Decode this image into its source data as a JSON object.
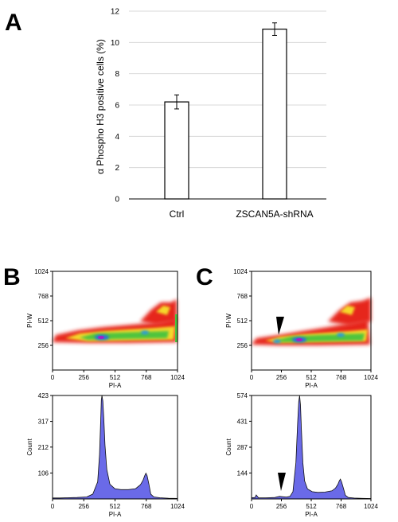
{
  "panels": {
    "a": "A",
    "b": "B",
    "c": "C"
  },
  "chart_data": [
    {
      "panel": "A",
      "type": "bar",
      "categories": [
        "Ctrl",
        "ZSCAN5A-shRNA"
      ],
      "values": [
        6.2,
        10.85
      ],
      "errors": [
        0.45,
        0.4
      ],
      "ylabel": "α Phospho H3 positive cells (%)",
      "ylim": [
        0,
        12
      ],
      "yticks": [
        "0",
        "2",
        "4",
        "6",
        "8",
        "10",
        "12"
      ],
      "grid": true
    },
    {
      "panel": "B",
      "type": "scatter",
      "xlabel": "PI-A",
      "ylabel": "PI-W",
      "xlim": [
        0,
        1024
      ],
      "ylim": [
        0,
        1024
      ],
      "xticks": [
        "0",
        "256",
        "512",
        "768",
        "1024"
      ],
      "yticks": [
        "256",
        "512",
        "768",
        "1024"
      ]
    },
    {
      "panel": "B",
      "type": "area",
      "xlabel": "PI-A",
      "ylabel": "Count",
      "xlim": [
        0,
        1024
      ],
      "ylim": [
        0,
        423
      ],
      "xticks": [
        "0",
        "256",
        "512",
        "768",
        "1024"
      ],
      "yticks": [
        "106",
        "212",
        "317",
        "423"
      ],
      "x": [
        0,
        60,
        120,
        200,
        280,
        330,
        370,
        385,
        395,
        400,
        405,
        412,
        420,
        430,
        445,
        470,
        510,
        560,
        620,
        680,
        720,
        740,
        755,
        765,
        775,
        790,
        805,
        830,
        880,
        950,
        1024
      ],
      "y": [
        4,
        4,
        5,
        6,
        8,
        20,
        70,
        180,
        330,
        405,
        423,
        400,
        330,
        220,
        120,
        60,
        42,
        38,
        38,
        42,
        58,
        75,
        95,
        105,
        95,
        60,
        20,
        8,
        5,
        3,
        2
      ]
    },
    {
      "panel": "C",
      "type": "scatter",
      "xlabel": "PI-A",
      "ylabel": "PI-W",
      "xlim": [
        0,
        1024
      ],
      "ylim": [
        0,
        1024
      ],
      "xticks": [
        "0",
        "256",
        "512",
        "768",
        "1024"
      ],
      "yticks": [
        "256",
        "512",
        "768",
        "1024"
      ]
    },
    {
      "panel": "C",
      "type": "area",
      "xlabel": "PI-A",
      "ylabel": "Count",
      "xlim": [
        0,
        1024
      ],
      "ylim": [
        0,
        574
      ],
      "xticks": [
        "0",
        "256",
        "512",
        "768",
        "1024"
      ],
      "yticks": [
        "144",
        "287",
        "431",
        "574"
      ],
      "x": [
        0,
        30,
        40,
        60,
        120,
        200,
        240,
        270,
        300,
        330,
        355,
        380,
        395,
        405,
        412,
        420,
        428,
        440,
        455,
        480,
        520,
        570,
        630,
        690,
        720,
        740,
        752,
        762,
        772,
        790,
        805,
        830,
        880,
        950,
        1024
      ],
      "y": [
        6,
        8,
        22,
        6,
        6,
        8,
        14,
        12,
        10,
        14,
        40,
        200,
        420,
        540,
        574,
        520,
        380,
        200,
        100,
        55,
        40,
        36,
        38,
        45,
        60,
        80,
        100,
        110,
        95,
        55,
        20,
        8,
        5,
        3,
        2
      ]
    }
  ]
}
